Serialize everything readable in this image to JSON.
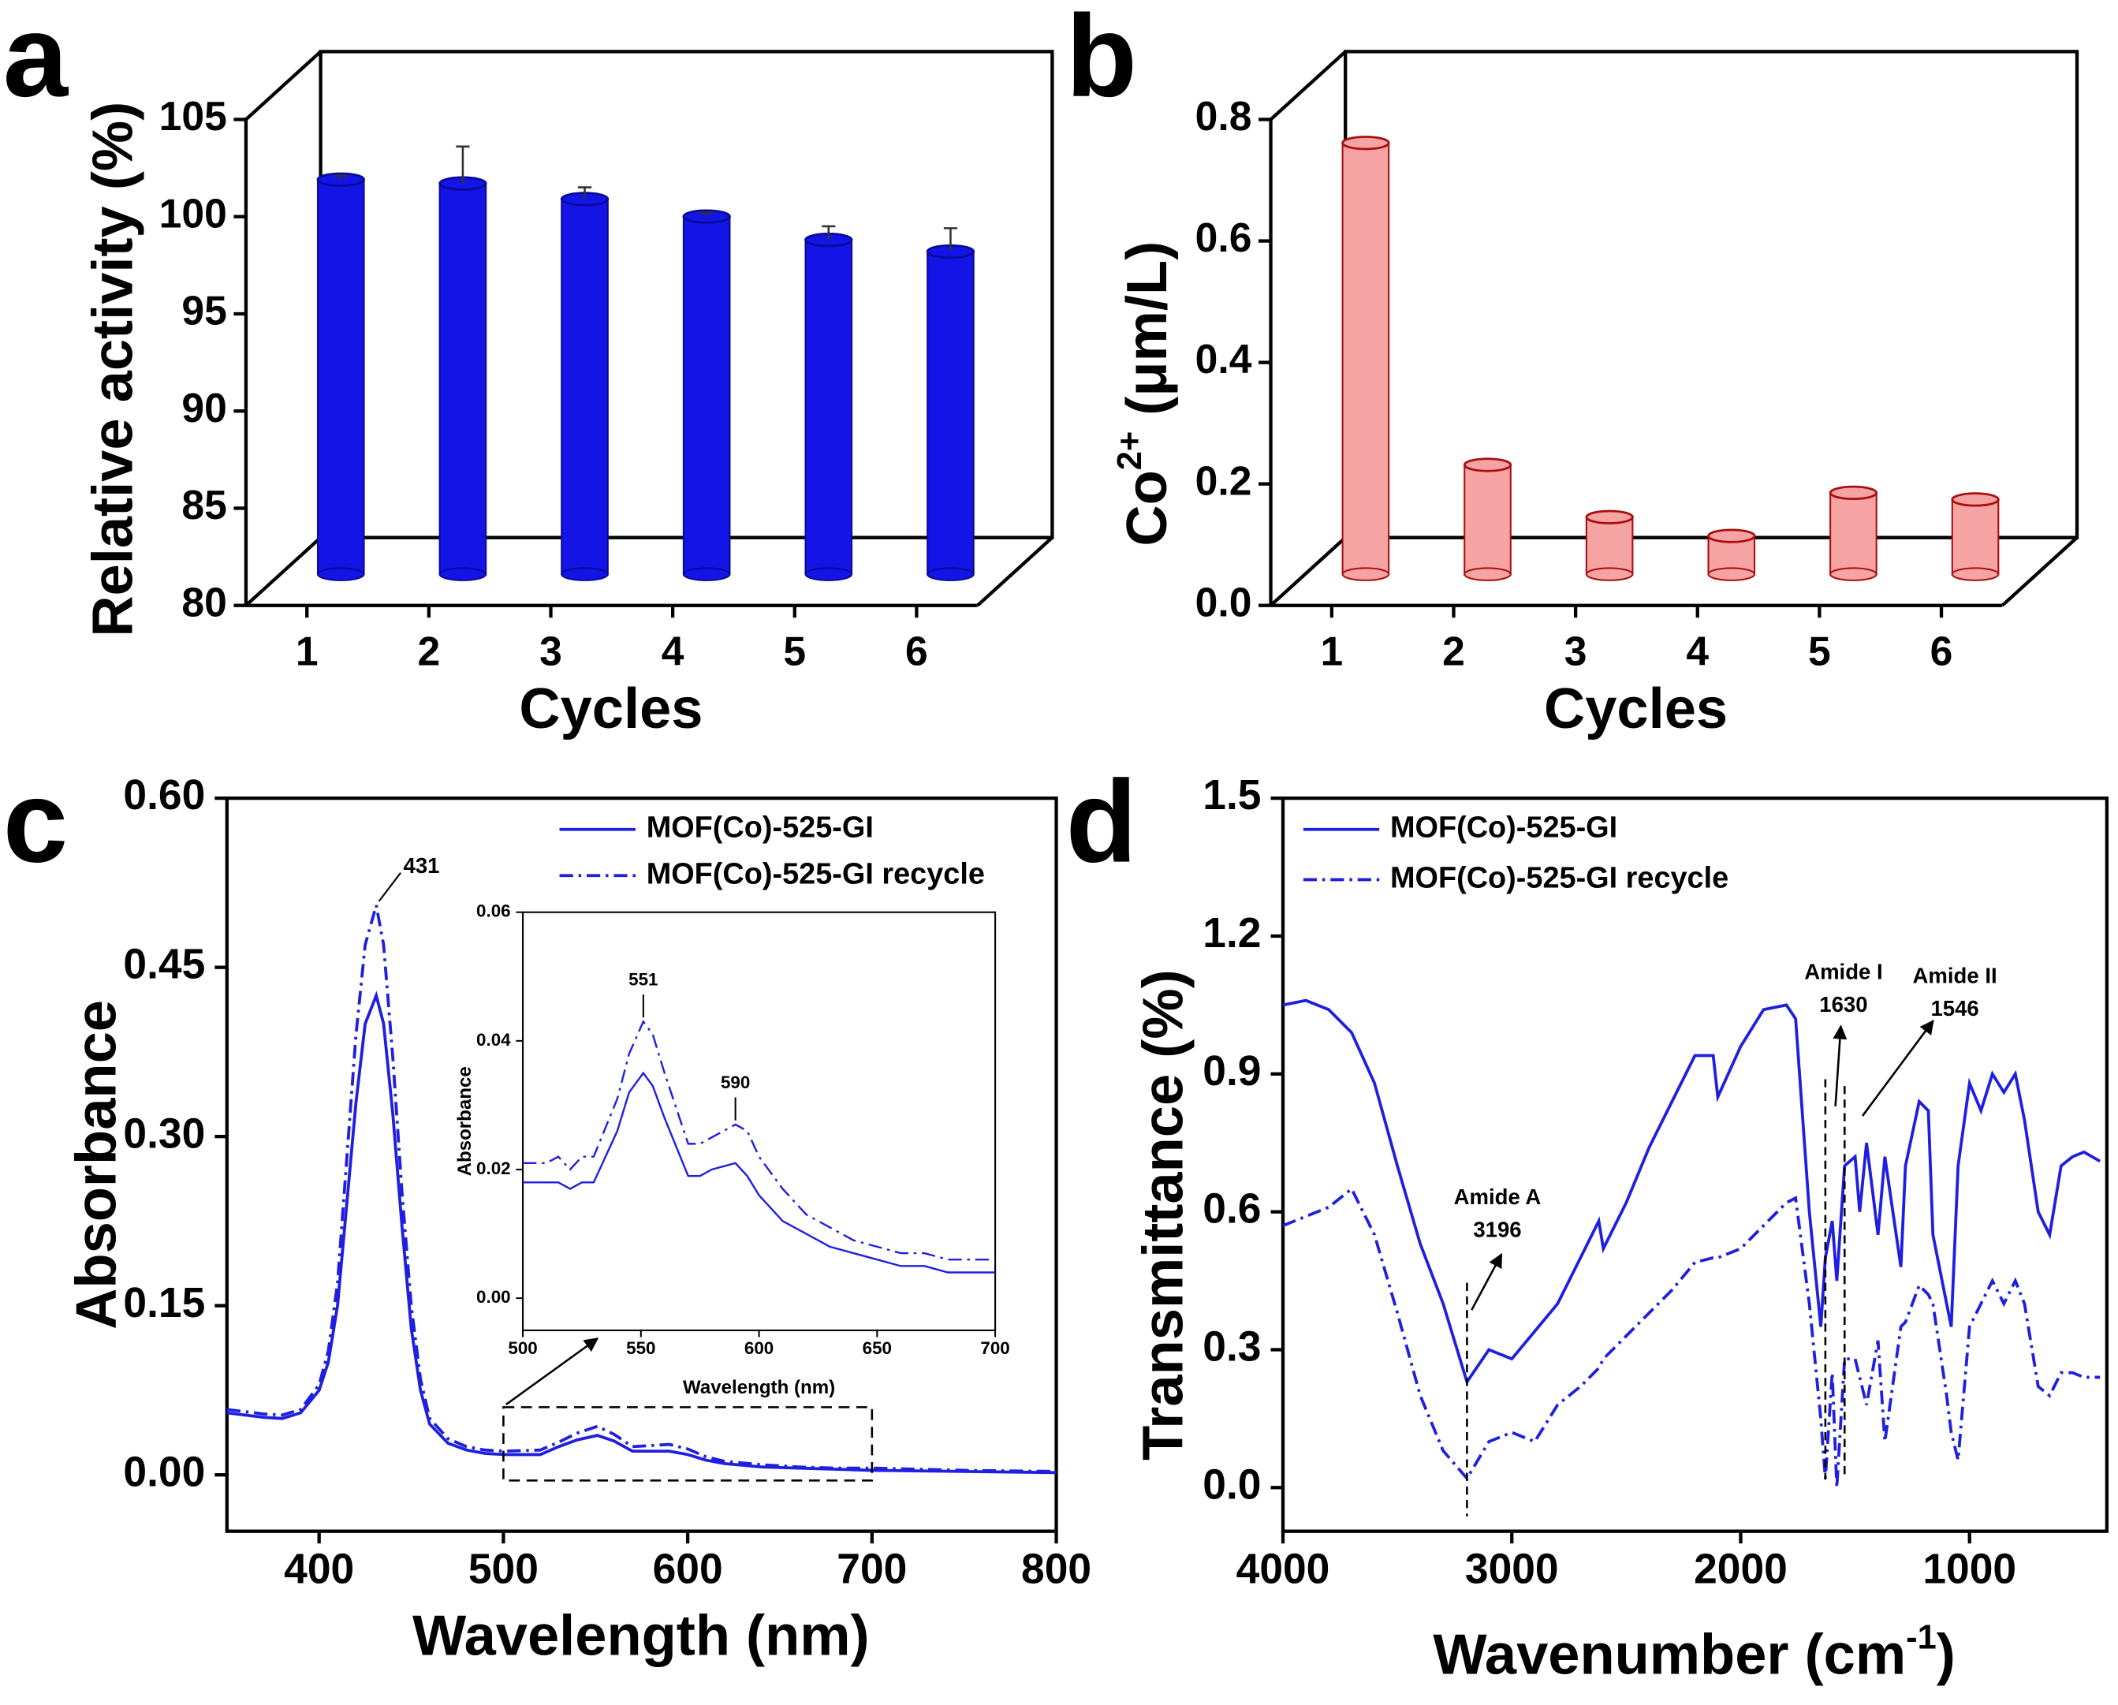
{
  "chart_data": [
    {
      "type": "bar3d",
      "panel": "a",
      "y_label": [
        "Relative activity (%)"
      ],
      "x_label": "Cycles",
      "categories": [
        "1",
        "2",
        "3",
        "4",
        "5",
        "6"
      ],
      "values": [
        100.3,
        100.1,
        99.3,
        98.4,
        97.2,
        96.6
      ],
      "errors": [
        0.2,
        1.9,
        0.6,
        0.2,
        0.7,
        1.2
      ],
      "color": "#1414e6",
      "edge_color": "#0a0a9a",
      "ylim": [
        80,
        105
      ],
      "yticks": [
        80,
        85,
        90,
        95,
        100,
        105
      ]
    },
    {
      "type": "bar3d",
      "panel": "b",
      "y_label": [
        "Co",
        "2+",
        " (μm/L)"
      ],
      "x_label": "Cycles",
      "categories": [
        "1",
        "2",
        "3",
        "4",
        "5",
        "6"
      ],
      "values": [
        0.71,
        0.18,
        0.094,
        0.063,
        0.134,
        0.123
      ],
      "color": "#f5a3a3",
      "edge_color": "#a80e0e",
      "ylim": [
        0,
        0.8
      ],
      "yticks": [
        {
          "value": 0,
          "label": "0.0"
        },
        {
          "value": 0.2,
          "label": "0.2"
        },
        {
          "value": 0.4,
          "label": "0.4"
        },
        {
          "value": 0.6,
          "label": "0.6"
        },
        {
          "value": 0.8,
          "label": "0.8"
        }
      ]
    },
    {
      "type": "line",
      "panel": "c",
      "y_label": [
        "Absorbance"
      ],
      "x_label": [
        "Wavelength (nm)"
      ],
      "x": [
        350,
        360,
        370,
        380,
        390,
        400,
        405,
        410,
        415,
        420,
        425,
        431,
        435,
        440,
        445,
        450,
        455,
        460,
        470,
        480,
        490,
        500,
        520,
        530,
        540,
        551,
        560,
        570,
        580,
        590,
        600,
        610,
        620,
        640,
        660,
        680,
        700,
        750,
        800
      ],
      "series": [
        {
          "name": "MOF(Co)-525-GI",
          "color": "#1f1fe0",
          "style": "solid",
          "values": [
            0.055,
            0.053,
            0.051,
            0.05,
            0.055,
            0.075,
            0.1,
            0.15,
            0.24,
            0.33,
            0.4,
            0.425,
            0.4,
            0.32,
            0.22,
            0.13,
            0.075,
            0.045,
            0.028,
            0.022,
            0.019,
            0.018,
            0.018,
            0.025,
            0.031,
            0.035,
            0.03,
            0.021,
            0.021,
            0.021,
            0.018,
            0.013,
            0.01,
            0.007,
            0.006,
            0.005,
            0.004,
            0.003,
            0.002
          ]
        },
        {
          "name": "MOF(Co)-525-GI recycle",
          "color": "#1f1fe0",
          "style": "dash-dot",
          "values": [
            0.058,
            0.056,
            0.054,
            0.053,
            0.058,
            0.08,
            0.11,
            0.17,
            0.28,
            0.39,
            0.47,
            0.505,
            0.47,
            0.37,
            0.25,
            0.15,
            0.085,
            0.05,
            0.032,
            0.025,
            0.022,
            0.021,
            0.022,
            0.029,
            0.037,
            0.043,
            0.036,
            0.025,
            0.026,
            0.027,
            0.023,
            0.016,
            0.012,
            0.009,
            0.007,
            0.006,
            0.006,
            0.004,
            0.003
          ]
        }
      ],
      "annotations": [
        {
          "value": 431
        }
      ],
      "xlim": [
        350,
        800
      ],
      "xticks": [
        400,
        500,
        600,
        700,
        800
      ],
      "ylim": [
        -0.05,
        0.6
      ],
      "yticks": [
        {
          "value": 0,
          "label": "0.00"
        },
        {
          "value": 0.15,
          "label": "0.15"
        },
        {
          "value": 0.3,
          "label": "0.30"
        },
        {
          "value": 0.45,
          "label": "0.45"
        },
        {
          "value": 0.6,
          "label": "0.60"
        }
      ],
      "legend": "upper right",
      "inset": {
        "type": "line",
        "y_label": [
          "Absorbance"
        ],
        "x_label": [
          "Wavelength (nm)"
        ],
        "x": [
          500,
          510,
          515,
          520,
          525,
          530,
          540,
          545,
          551,
          555,
          560,
          570,
          575,
          580,
          590,
          595,
          600,
          610,
          620,
          630,
          640,
          650,
          660,
          670,
          680,
          700
        ],
        "series": [
          {
            "color": "#1f1fe0",
            "style": "solid",
            "values": [
              0.018,
              0.018,
              0.018,
              0.017,
              0.018,
              0.018,
              0.026,
              0.032,
              0.035,
              0.033,
              0.028,
              0.019,
              0.019,
              0.02,
              0.021,
              0.019,
              0.016,
              0.012,
              0.01,
              0.008,
              0.007,
              0.006,
              0.005,
              0.005,
              0.004,
              0.004
            ]
          },
          {
            "color": "#1f1fe0",
            "style": "dash-dot",
            "values": [
              0.021,
              0.021,
              0.022,
              0.02,
              0.022,
              0.022,
              0.031,
              0.038,
              0.043,
              0.041,
              0.035,
              0.024,
              0.024,
              0.025,
              0.027,
              0.026,
              0.022,
              0.017,
              0.013,
              0.011,
              0.009,
              0.008,
              0.007,
              0.007,
              0.006,
              0.006
            ]
          }
        ],
        "annotations": [
          {
            "value": 551
          },
          {
            "value": 590
          }
        ],
        "xlim": [
          500,
          700
        ],
        "xticks": [
          500,
          550,
          600,
          650,
          700
        ],
        "ylim": [
          -0.005,
          0.06
        ],
        "yticks": [
          {
            "value": 0,
            "label": "0.00"
          },
          {
            "value": 0.02,
            "label": "0.02"
          },
          {
            "value": 0.04,
            "label": "0.04"
          },
          {
            "value": 0.06,
            "label": "0.06"
          }
        ]
      }
    },
    {
      "type": "line",
      "panel": "d",
      "y_label": [
        "Transmittance (%)"
      ],
      "x_label": [
        "Wavenumber (cm",
        "-1",
        ")"
      ],
      "x": [
        4000,
        3900,
        3800,
        3700,
        3600,
        3500,
        3400,
        3300,
        3196,
        3100,
        3000,
        2900,
        2800,
        2700,
        2620,
        2600,
        2500,
        2400,
        2300,
        2200,
        2120,
        2100,
        2000,
        1900,
        1800,
        1760,
        1700,
        1650,
        1630,
        1600,
        1580,
        1546,
        1500,
        1480,
        1450,
        1400,
        1370,
        1300,
        1280,
        1220,
        1180,
        1160,
        1100,
        1080,
        1050,
        1000,
        950,
        900,
        850,
        800,
        760,
        700,
        650,
        600,
        550,
        500,
        430
      ],
      "series": [
        {
          "name": "MOF(Co)-525-GI",
          "color": "#1f1fe0",
          "style": "solid",
          "values": [
            1.05,
            1.06,
            1.04,
            0.99,
            0.88,
            0.7,
            0.53,
            0.4,
            0.23,
            0.3,
            0.28,
            0.34,
            0.4,
            0.5,
            0.58,
            0.52,
            0.62,
            0.74,
            0.84,
            0.94,
            0.94,
            0.85,
            0.96,
            1.04,
            1.05,
            1.02,
            0.6,
            0.35,
            0.5,
            0.58,
            0.45,
            0.7,
            0.72,
            0.6,
            0.75,
            0.55,
            0.72,
            0.48,
            0.7,
            0.84,
            0.82,
            0.55,
            0.4,
            0.35,
            0.7,
            0.88,
            0.82,
            0.9,
            0.86,
            0.9,
            0.8,
            0.6,
            0.55,
            0.7,
            0.72,
            0.73,
            0.71
          ]
        },
        {
          "name": "MOF(Co)-525-GI recycle",
          "color": "#1f1fe0",
          "style": "dash-dot",
          "values": [
            0.57,
            0.59,
            0.61,
            0.65,
            0.55,
            0.38,
            0.2,
            0.08,
            0.02,
            0.1,
            0.12,
            0.1,
            0.18,
            0.22,
            0.26,
            0.28,
            0.33,
            0.38,
            0.43,
            0.49,
            0.5,
            0.5,
            0.52,
            0.57,
            0.62,
            0.63,
            0.4,
            0.15,
            0.02,
            0.25,
            0.0,
            0.28,
            0.28,
            0.24,
            0.18,
            0.32,
            0.1,
            0.35,
            0.36,
            0.44,
            0.42,
            0.4,
            0.2,
            0.12,
            0.06,
            0.35,
            0.4,
            0.45,
            0.4,
            0.45,
            0.4,
            0.22,
            0.2,
            0.25,
            0.25,
            0.24,
            0.24
          ]
        }
      ],
      "annotations": [
        {
          "label": "Amide A",
          "value": 3196
        },
        {
          "label": "Amide I",
          "value": 1630
        },
        {
          "label": "Amide II",
          "value": 1546
        }
      ],
      "xlim": [
        4000,
        400
      ],
      "xticks": [
        4000,
        3000,
        2000,
        1000
      ],
      "ylim": [
        -0.095,
        1.5
      ],
      "yticks": [
        {
          "value": 0,
          "label": "0.0"
        },
        {
          "value": 0.3,
          "label": "0.3"
        },
        {
          "value": 0.6,
          "label": "0.6"
        },
        {
          "value": 0.9,
          "label": "0.9"
        },
        {
          "value": 1.2,
          "label": "1.2"
        },
        {
          "value": 1.5,
          "label": "1.5"
        }
      ],
      "legend": "upper left"
    }
  ]
}
